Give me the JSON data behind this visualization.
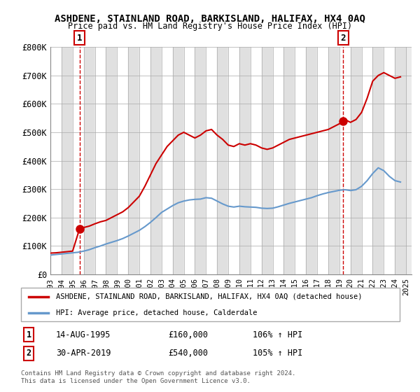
{
  "title": "ASHDENE, STAINLAND ROAD, BARKISLAND, HALIFAX, HX4 0AQ",
  "subtitle": "Price paid vs. HM Land Registry's House Price Index (HPI)",
  "legend_label_red": "ASHDENE, STAINLAND ROAD, BARKISLAND, HALIFAX, HX4 0AQ (detached house)",
  "legend_label_blue": "HPI: Average price, detached house, Calderdale",
  "footnote": "Contains HM Land Registry data © Crown copyright and database right 2024.\nThis data is licensed under the Open Government Licence v3.0.",
  "sale1_label": "1",
  "sale1_date": "14-AUG-1995",
  "sale1_price": "£160,000",
  "sale1_hpi": "106% ↑ HPI",
  "sale1_year": 1995.62,
  "sale1_value": 160000,
  "sale2_label": "2",
  "sale2_date": "30-APR-2019",
  "sale2_price": "£540,000",
  "sale2_hpi": "105% ↑ HPI",
  "sale2_year": 2019.33,
  "sale2_value": 540000,
  "ylim": [
    0,
    800000
  ],
  "yticks": [
    0,
    100000,
    200000,
    300000,
    400000,
    500000,
    600000,
    700000,
    800000
  ],
  "ytick_labels": [
    "£0",
    "£100K",
    "£200K",
    "£300K",
    "£400K",
    "£500K",
    "£600K",
    "£700K",
    "£800K"
  ],
  "xlim": [
    1993,
    2025.5
  ],
  "xticks": [
    1993,
    1994,
    1995,
    1996,
    1997,
    1998,
    1999,
    2000,
    2001,
    2002,
    2003,
    2004,
    2005,
    2006,
    2007,
    2008,
    2009,
    2010,
    2011,
    2012,
    2013,
    2014,
    2015,
    2016,
    2017,
    2018,
    2019,
    2020,
    2021,
    2022,
    2023,
    2024,
    2025
  ],
  "red_color": "#cc0000",
  "blue_color": "#6699cc",
  "marker_color": "#cc0000",
  "bg_hatch_color": "#e8e8e8",
  "grid_color": "#cccccc",
  "red_line_data_x": [
    1993.0,
    1993.5,
    1994.0,
    1994.5,
    1995.0,
    1995.62,
    1995.62,
    1996.0,
    1996.5,
    1997.0,
    1997.5,
    1998.0,
    1998.5,
    1999.0,
    1999.5,
    2000.0,
    2000.5,
    2001.0,
    2001.5,
    2002.0,
    2002.5,
    2003.0,
    2003.5,
    2004.0,
    2004.5,
    2005.0,
    2005.5,
    2006.0,
    2006.5,
    2007.0,
    2007.5,
    2008.0,
    2008.5,
    2009.0,
    2009.5,
    2010.0,
    2010.5,
    2011.0,
    2011.5,
    2012.0,
    2012.5,
    2013.0,
    2013.5,
    2014.0,
    2014.5,
    2015.0,
    2015.5,
    2016.0,
    2016.5,
    2017.0,
    2017.5,
    2018.0,
    2018.5,
    2019.0,
    2019.33,
    2019.33,
    2019.5,
    2020.0,
    2020.5,
    2021.0,
    2021.5,
    2022.0,
    2022.5,
    2023.0,
    2023.5,
    2024.0,
    2024.5
  ],
  "red_line_data_y": [
    75000,
    76000,
    78000,
    80000,
    82000,
    160000,
    160000,
    165000,
    170000,
    178000,
    185000,
    190000,
    200000,
    210000,
    220000,
    235000,
    255000,
    275000,
    310000,
    350000,
    390000,
    420000,
    450000,
    470000,
    490000,
    500000,
    490000,
    480000,
    490000,
    505000,
    510000,
    490000,
    475000,
    455000,
    450000,
    460000,
    455000,
    460000,
    455000,
    445000,
    440000,
    445000,
    455000,
    465000,
    475000,
    480000,
    485000,
    490000,
    495000,
    500000,
    505000,
    510000,
    520000,
    530000,
    540000,
    540000,
    545000,
    535000,
    545000,
    570000,
    620000,
    680000,
    700000,
    710000,
    700000,
    690000,
    695000
  ],
  "blue_line_data_x": [
    1993.0,
    1993.5,
    1994.0,
    1994.5,
    1995.0,
    1995.5,
    1996.0,
    1996.5,
    1997.0,
    1997.5,
    1998.0,
    1998.5,
    1999.0,
    1999.5,
    2000.0,
    2000.5,
    2001.0,
    2001.5,
    2002.0,
    2002.5,
    2003.0,
    2003.5,
    2004.0,
    2004.5,
    2005.0,
    2005.5,
    2006.0,
    2006.5,
    2007.0,
    2007.5,
    2008.0,
    2008.5,
    2009.0,
    2009.5,
    2010.0,
    2010.5,
    2011.0,
    2011.5,
    2012.0,
    2012.5,
    2013.0,
    2013.5,
    2014.0,
    2014.5,
    2015.0,
    2015.5,
    2016.0,
    2016.5,
    2017.0,
    2017.5,
    2018.0,
    2018.5,
    2019.0,
    2019.5,
    2020.0,
    2020.5,
    2021.0,
    2021.5,
    2022.0,
    2022.5,
    2023.0,
    2023.5,
    2024.0,
    2024.5
  ],
  "blue_line_data_y": [
    68000,
    70000,
    72000,
    74000,
    76000,
    78000,
    82000,
    87000,
    94000,
    100000,
    107000,
    113000,
    119000,
    126000,
    135000,
    145000,
    155000,
    168000,
    183000,
    200000,
    218000,
    230000,
    242000,
    252000,
    258000,
    262000,
    264000,
    265000,
    270000,
    268000,
    258000,
    248000,
    240000,
    237000,
    240000,
    238000,
    237000,
    236000,
    233000,
    232000,
    233000,
    238000,
    244000,
    250000,
    255000,
    260000,
    265000,
    270000,
    277000,
    283000,
    288000,
    292000,
    296000,
    298000,
    295000,
    298000,
    310000,
    330000,
    355000,
    375000,
    365000,
    345000,
    330000,
    325000
  ]
}
